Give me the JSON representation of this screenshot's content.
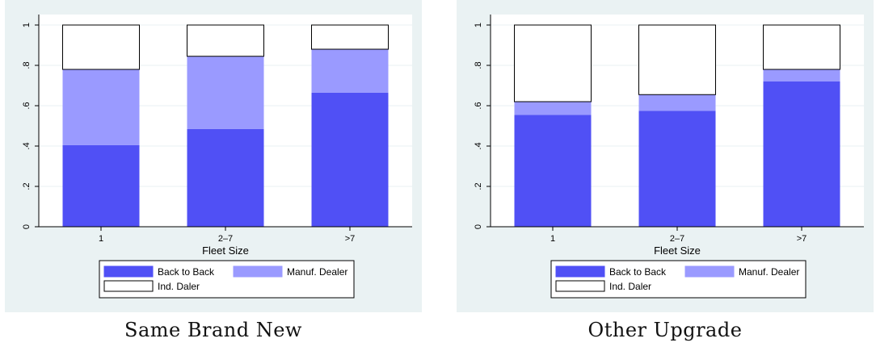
{
  "chart_data": [
    {
      "type": "bar",
      "stacked": true,
      "title": "Same Brand New",
      "xlabel": "Fleet Size",
      "ylabel": "",
      "categories": [
        "1",
        "2–7",
        ">7"
      ],
      "ylim": [
        0,
        1
      ],
      "yticks": [
        0,
        0.2,
        0.4,
        0.6,
        0.8,
        1
      ],
      "ytick_labels": [
        "0",
        ".2",
        ".4",
        ".6",
        ".8",
        "1"
      ],
      "grid": true,
      "legend_position": "bottom",
      "series": [
        {
          "name": "Back to Back",
          "color": "#5050f5",
          "values": [
            0.405,
            0.485,
            0.665
          ]
        },
        {
          "name": "Manuf. Dealer",
          "color": "#9a9aff",
          "values": [
            0.375,
            0.36,
            0.215
          ]
        },
        {
          "name": "Ind. Daler",
          "color": "#ffffff",
          "values": [
            0.22,
            0.155,
            0.12
          ]
        }
      ]
    },
    {
      "type": "bar",
      "stacked": true,
      "title": "Other Upgrade",
      "xlabel": "Fleet Size",
      "ylabel": "",
      "categories": [
        "1",
        "2–7",
        ">7"
      ],
      "ylim": [
        0,
        1
      ],
      "yticks": [
        0,
        0.2,
        0.4,
        0.6,
        0.8,
        1
      ],
      "ytick_labels": [
        "0",
        ".2",
        ".4",
        ".6",
        ".8",
        "1"
      ],
      "grid": true,
      "legend_position": "bottom",
      "series": [
        {
          "name": "Back to Back",
          "color": "#5050f5",
          "values": [
            0.555,
            0.575,
            0.72
          ]
        },
        {
          "name": "Manuf. Dealer",
          "color": "#9a9aff",
          "values": [
            0.065,
            0.08,
            0.06
          ]
        },
        {
          "name": "Ind. Daler",
          "color": "#ffffff",
          "values": [
            0.38,
            0.345,
            0.22
          ]
        }
      ]
    }
  ],
  "style": {
    "panel_bg": "#eaf2f3",
    "plot_bg": "#ffffff",
    "grid_color": "#eaf2f3",
    "axis_color": "#000000"
  }
}
